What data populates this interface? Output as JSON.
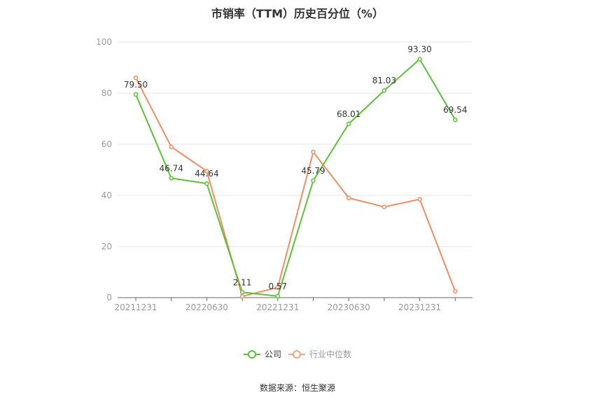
{
  "chart_data": {
    "type": "line",
    "title": "市销率（TTM）历史百分位（%）",
    "xlabel": "",
    "ylabel": "",
    "ylim": [
      0,
      100
    ],
    "yticks": [
      0,
      20,
      40,
      60,
      80,
      100
    ],
    "categories": [
      "20211231",
      "",
      "20220630",
      "",
      "20221231",
      "",
      "20230630",
      "",
      "20231231",
      ""
    ],
    "series": [
      {
        "name": "公司",
        "color": "#5bc236",
        "values": [
          79.5,
          46.74,
          44.64,
          2.11,
          0.57,
          45.79,
          68.01,
          81.03,
          93.3,
          69.54
        ],
        "labels": [
          "79.50",
          "46.74",
          "44.64",
          "2.11",
          "0.57",
          "45.79",
          "68.01",
          "81.03",
          "93.30",
          "69.54"
        ]
      },
      {
        "name": "行业中位数",
        "color": "#f28c62",
        "values": [
          86.0,
          59.0,
          49.5,
          0.5,
          4.0,
          57.0,
          39.0,
          35.5,
          38.5,
          2.5
        ]
      }
    ],
    "grid": true,
    "legend": "bottom-center"
  },
  "source": "数据来源：恒生聚源"
}
